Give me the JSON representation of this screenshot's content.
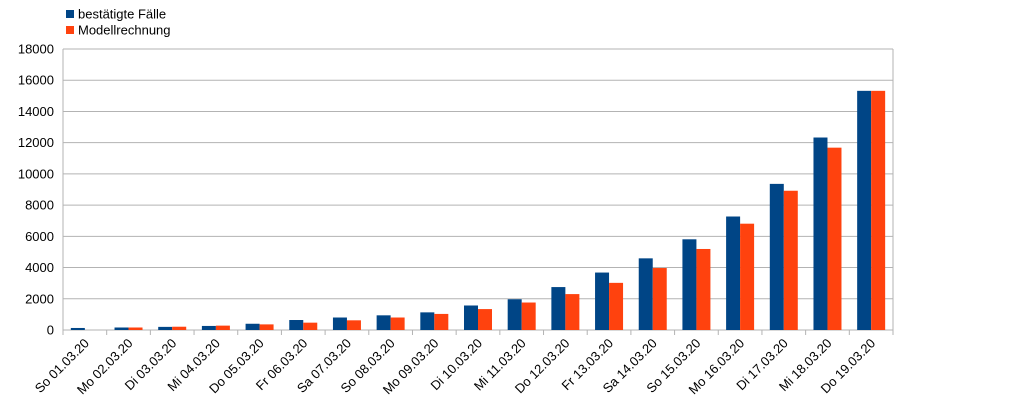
{
  "chart_data": {
    "type": "bar",
    "categories": [
      "So 01.03.20",
      "Mo 02.03.20",
      "Di 03.03.20",
      "Mi 04.03.20",
      "Do 05.03.20",
      "Fr 06.03.20",
      "Sa 07.03.20",
      "So 08.03.20",
      "Mo 09.03.20",
      "Di 10.03.20",
      "Mi 11.03.20",
      "Do 12.03.20",
      "Fr 13.03.20",
      "Sa 14.03.20",
      "So 15.03.20",
      "Mo 16.03.20",
      "Di 17.03.20",
      "Mi 18.03.20",
      "Do 19.03.20"
    ],
    "series": [
      {
        "name": "bestätigte Fälle",
        "color": "#004586",
        "values": [
          130,
          160,
          200,
          260,
          400,
          640,
          800,
          940,
          1130,
          1570,
          1970,
          2750,
          3680,
          4590,
          5810,
          7270,
          9360,
          12330,
          15320
        ]
      },
      {
        "name": "Modellrechnung",
        "color": "#ff420e",
        "values": [
          null,
          160,
          210,
          280,
          360,
          470,
          620,
          800,
          1030,
          1340,
          1760,
          2300,
          3020,
          3970,
          5190,
          6810,
          8920,
          11680,
          15320
        ]
      }
    ],
    "yticks": [
      "0",
      "2000",
      "4000",
      "6000",
      "8000",
      "10000",
      "12000",
      "14000",
      "16000",
      "18000"
    ],
    "ylim": [
      0,
      18000
    ],
    "grid": true,
    "legend": "top-left",
    "title": "",
    "xlabel": "",
    "ylabel": ""
  }
}
